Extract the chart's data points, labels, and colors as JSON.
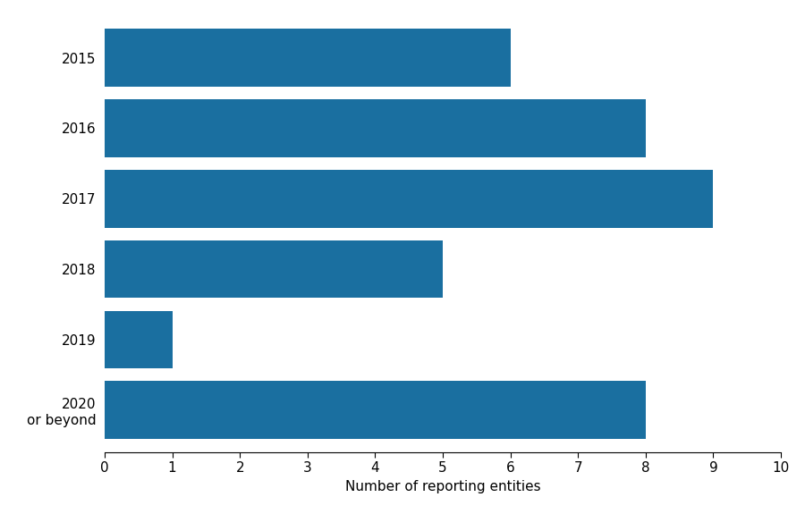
{
  "categories": [
    "2015",
    "2016",
    "2017",
    "2018",
    "2019",
    "2020\nor beyond"
  ],
  "values": [
    6,
    8,
    9,
    5,
    1,
    8
  ],
  "bar_color": "#1a6fa0",
  "xlabel": "Number of reporting entities",
  "xlim": [
    0,
    10
  ],
  "xticks": [
    0,
    1,
    2,
    3,
    4,
    5,
    6,
    7,
    8,
    9,
    10
  ],
  "bar_height": 0.82,
  "background_color": "#ffffff",
  "xlabel_fontsize": 11,
  "tick_fontsize": 11
}
